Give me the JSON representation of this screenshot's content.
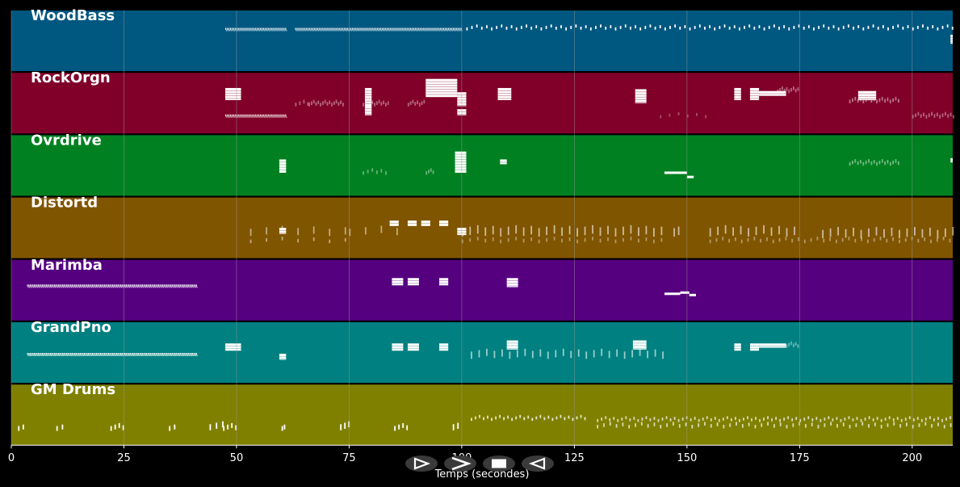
{
  "xaxis": {
    "label": "Temps (secondes)",
    "ticks": [
      "0",
      "25",
      "50",
      "75",
      "100",
      "125",
      "150",
      "175",
      "200"
    ],
    "range": [
      0,
      209
    ]
  },
  "colors": {
    "background": "#000000",
    "note": "#ffffff",
    "grid": "#9a9a9a",
    "button": "#3a3a3a"
  },
  "transport": [
    {
      "name": "play-button",
      "icon": "play-outline-icon"
    },
    {
      "name": "fast-forward-button",
      "icon": "fast-forward-icon"
    },
    {
      "name": "stop-button",
      "icon": "stop-icon"
    },
    {
      "name": "rewind-button",
      "icon": "rewind-icon"
    }
  ],
  "tracks": [
    {
      "name": "WoodBass",
      "color": "#005780",
      "runs": [
        [
          47.5,
          61,
          0.7,
          0.35,
          0.08
        ],
        [
          63,
          100,
          0.7,
          0.35,
          0.08
        ]
      ],
      "sparse": [
        [
          101,
          209,
          1.1,
          0.72,
          0.05,
          1.0
        ]
      ],
      "blocks": [
        [
          208.5,
          209,
          0.45,
          0.6
        ]
      ]
    },
    {
      "name": "RockOrgn",
      "color": "#80002a",
      "runs": [
        [
          47.5,
          61,
          0.3,
          0.35,
          0.08
        ]
      ],
      "sparse": [
        [
          63,
          66,
          0.9,
          0.5,
          0.06,
          0.4
        ],
        [
          66,
          74,
          0.5,
          0.5,
          0.06,
          0.4
        ],
        [
          78,
          84,
          0.5,
          0.5,
          0.06,
          0.4
        ],
        [
          88,
          92,
          0.5,
          0.5,
          0.06,
          0.4
        ],
        [
          144,
          155,
          2.0,
          0.3,
          0.05,
          0.3
        ],
        [
          170,
          175,
          0.5,
          0.72,
          0.06,
          0.4
        ],
        [
          186,
          197,
          0.6,
          0.55,
          0.06,
          0.45
        ],
        [
          200,
          209,
          0.6,
          0.3,
          0.06,
          0.4
        ]
      ],
      "blocks": [
        [
          47.5,
          51,
          0.55,
          0.75
        ],
        [
          78.5,
          80,
          0.45,
          0.75
        ],
        [
          78.5,
          80,
          0.3,
          0.45
        ],
        [
          92,
          99,
          0.6,
          0.9
        ],
        [
          99,
          101,
          0.45,
          0.68
        ],
        [
          99,
          101,
          0.3,
          0.4
        ],
        [
          108,
          111,
          0.55,
          0.75
        ],
        [
          138.5,
          141,
          0.5,
          0.73
        ],
        [
          160.5,
          162,
          0.55,
          0.75
        ],
        [
          164,
          166,
          0.55,
          0.75
        ],
        [
          166,
          172,
          0.62,
          0.7
        ],
        [
          188,
          192,
          0.55,
          0.7
        ]
      ]
    },
    {
      "name": "Ovrdrive",
      "color": "#008020",
      "runs": [],
      "sparse": [
        [
          78,
          84,
          1.0,
          0.4,
          0.06,
          0.4
        ],
        [
          92,
          94,
          0.5,
          0.4,
          0.06,
          0.4
        ],
        [
          186,
          197,
          0.6,
          0.55,
          0.06,
          0.45
        ]
      ],
      "blocks": [
        [
          59.5,
          61,
          0.38,
          0.6
        ],
        [
          98.5,
          101,
          0.38,
          0.73
        ],
        [
          108.5,
          110,
          0.52,
          0.6
        ],
        [
          145,
          150,
          0.36,
          0.4
        ],
        [
          150,
          151.5,
          0.3,
          0.33
        ],
        [
          208.5,
          209,
          0.55,
          0.62
        ]
      ]
    },
    {
      "name": "Distortd",
      "color": "#805500",
      "runs": [],
      "sparse": [
        [
          53,
          75,
          3.5,
          0.45,
          0.12,
          0.5
        ],
        [
          75,
          86,
          3.5,
          0.45,
          0.12,
          0.5
        ],
        [
          100,
          145,
          1.7,
          0.45,
          0.14,
          0.6
        ],
        [
          147,
          149,
          1.0,
          0.45,
          0.14,
          0.6
        ],
        [
          155,
          175,
          1.7,
          0.45,
          0.14,
          0.6
        ],
        [
          180,
          209,
          1.7,
          0.42,
          0.14,
          0.6
        ],
        [
          53,
          75,
          3.5,
          0.3,
          0.06,
          0.5
        ],
        [
          100,
          145,
          1.7,
          0.3,
          0.06,
          0.4
        ],
        [
          155,
          209,
          1.4,
          0.3,
          0.06,
          0.4
        ]
      ],
      "blocks": [
        [
          59.5,
          61,
          0.4,
          0.5
        ],
        [
          84,
          86,
          0.53,
          0.62
        ],
        [
          88,
          90,
          0.53,
          0.62
        ],
        [
          91,
          93,
          0.53,
          0.62
        ],
        [
          95,
          97,
          0.53,
          0.62
        ],
        [
          99,
          101,
          0.38,
          0.5
        ]
      ]
    },
    {
      "name": "Marimba",
      "color": "#55007f",
      "runs": [
        [
          3.5,
          41,
          0.58,
          0.3,
          0.08
        ]
      ],
      "sparse": [],
      "blocks": [
        [
          84.5,
          87,
          0.58,
          0.7
        ],
        [
          88,
          90.5,
          0.58,
          0.7
        ],
        [
          95,
          97,
          0.58,
          0.7
        ],
        [
          110,
          112.5,
          0.55,
          0.7
        ],
        [
          145,
          148.5,
          0.43,
          0.46
        ],
        [
          148.5,
          150.5,
          0.45,
          0.48
        ],
        [
          150.5,
          152,
          0.41,
          0.44
        ]
      ]
    },
    {
      "name": "GrandPno",
      "color": "#008080",
      "runs": [
        [
          3.5,
          41,
          0.48,
          0.3,
          0.08
        ]
      ],
      "sparse": [
        [
          102,
          145,
          1.7,
          0.48,
          0.12,
          0.6
        ],
        [
          172,
          175,
          0.5,
          0.63,
          0.06,
          0.4
        ]
      ],
      "blocks": [
        [
          47.5,
          51,
          0.53,
          0.65
        ],
        [
          59.5,
          61,
          0.38,
          0.48
        ],
        [
          84.5,
          87,
          0.53,
          0.65
        ],
        [
          88,
          90.5,
          0.53,
          0.65
        ],
        [
          95,
          97,
          0.53,
          0.65
        ],
        [
          110,
          112.5,
          0.55,
          0.7
        ],
        [
          138,
          141,
          0.55,
          0.7
        ],
        [
          160.5,
          162,
          0.53,
          0.65
        ],
        [
          164,
          166,
          0.53,
          0.65
        ],
        [
          166,
          172,
          0.58,
          0.65
        ]
      ]
    },
    {
      "name": "GM Drums",
      "color": "#808000",
      "runs": [],
      "sparse": [
        [
          1.5,
          3,
          1.0,
          0.3,
          0.08,
          1.0
        ],
        [
          10,
          11.5,
          1.2,
          0.3,
          0.08,
          1.0
        ],
        [
          22,
          25,
          0.9,
          0.3,
          0.08,
          1.0
        ],
        [
          35,
          37,
          1.1,
          0.3,
          0.08,
          1.0
        ],
        [
          44,
          47.5,
          1.4,
          0.32,
          0.1,
          1.0
        ],
        [
          47,
          50,
          0.9,
          0.3,
          0.08,
          1.0
        ],
        [
          60,
          61,
          0.5,
          0.3,
          0.08,
          1.0
        ],
        [
          73,
          75,
          0.9,
          0.32,
          0.1,
          1.0
        ],
        [
          85,
          88,
          0.9,
          0.3,
          0.08,
          1.0
        ],
        [
          98,
          100,
          1.0,
          0.32,
          0.1,
          1.0
        ],
        [
          102,
          128,
          0.9,
          0.45,
          0.05,
          0.8
        ],
        [
          130,
          209,
          0.9,
          0.43,
          0.05,
          0.7
        ],
        [
          130,
          209,
          1.4,
          0.33,
          0.06,
          0.7
        ]
      ],
      "blocks": []
    }
  ]
}
